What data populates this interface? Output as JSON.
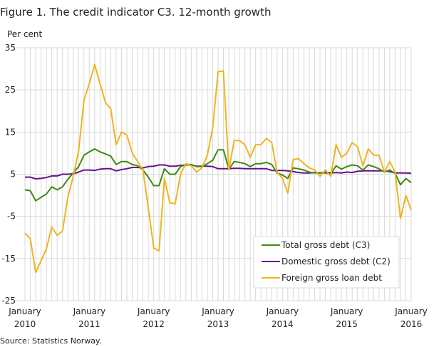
{
  "chart_data": {
    "type": "line",
    "title": "Figure 1. The credit indicator C3. 12-month growth",
    "ylabel": "Per cent",
    "source": "Source: Statistics Norway.",
    "ylim": [
      -25,
      35
    ],
    "yticks": [
      35,
      25,
      15,
      5,
      -5,
      -15,
      -25
    ],
    "x_start": "2010-01",
    "x_end": "2016-01",
    "xtick_labels": [
      {
        "month": "January",
        "year": "2010"
      },
      {
        "month": "January",
        "year": "2011"
      },
      {
        "month": "January",
        "year": "2012"
      },
      {
        "month": "January",
        "year": "2013"
      },
      {
        "month": "January",
        "year": "2014"
      },
      {
        "month": "January",
        "year": "2015"
      },
      {
        "month": "January",
        "year": "2016"
      }
    ],
    "grid": true,
    "legend_placement": "bottom-right",
    "series": [
      {
        "name": "Total gross debt (C3)",
        "color": "#3f8a0e",
        "values": [
          1.3,
          1.1,
          -1.3,
          -0.5,
          0.3,
          2,
          1.3,
          2,
          3.8,
          5.3,
          6.8,
          9.5,
          10.3,
          11,
          10.3,
          9.8,
          9.3,
          7.3,
          8,
          8,
          7.3,
          7,
          6,
          4.3,
          2.3,
          2.3,
          6.3,
          5,
          5,
          6.8,
          7.3,
          7.3,
          6.8,
          6.8,
          7.5,
          8.3,
          10.8,
          10.8,
          6.2,
          8,
          7.8,
          7.5,
          6.8,
          7.5,
          7.5,
          7.8,
          7.3,
          5.3,
          4.8,
          4,
          6.5,
          6.3,
          6,
          5.5,
          5.3,
          5.3,
          5.3,
          5.1,
          7,
          6.2,
          6.8,
          7.2,
          7,
          6,
          7.2,
          6.8,
          6.3,
          5.5,
          6,
          5.2,
          2.5,
          4,
          3
        ]
      },
      {
        "name": "Domestic gross debt (C2)",
        "color": "#6b0f8a",
        "values": [
          4.3,
          4.3,
          3.9,
          4,
          4.2,
          4.6,
          4.6,
          5,
          5,
          5.1,
          5.5,
          6,
          6,
          5.9,
          6.2,
          6.3,
          6.3,
          5.8,
          6.1,
          6.3,
          6.6,
          6.6,
          6.5,
          6.8,
          6.9,
          7.2,
          7.2,
          6.9,
          6.9,
          7.1,
          7.2,
          7.2,
          6.9,
          6.9,
          6.9,
          6.8,
          6.3,
          6.3,
          6.3,
          6.4,
          6.4,
          6.3,
          6.3,
          6.3,
          6.3,
          6.3,
          5.9,
          5.9,
          5.9,
          5.8,
          5.6,
          5.4,
          5.3,
          5.3,
          5.4,
          5.3,
          5.5,
          5.3,
          5.4,
          5.3,
          5.5,
          5.4,
          5.7,
          5.8,
          5.8,
          5.8,
          5.8,
          5.8,
          5.6,
          5.3,
          5.3,
          5.3,
          5.2
        ]
      },
      {
        "name": "Foreign gross loan debt",
        "color": "#f0b323",
        "values": [
          -9,
          -10.3,
          -18.3,
          -15.5,
          -12.7,
          -7.5,
          -9.5,
          -8.5,
          -0.5,
          4.5,
          10.5,
          22.5,
          26.5,
          31,
          26.5,
          22,
          20.5,
          12,
          15,
          14.3,
          10,
          8,
          6,
          -3,
          -12.5,
          -13.2,
          4,
          -1.8,
          -2,
          5,
          7.5,
          7,
          5.5,
          6.5,
          9.5,
          16,
          29.3,
          29.5,
          6,
          13,
          13,
          12,
          9,
          12,
          12,
          13.5,
          12.5,
          5.5,
          4,
          0.5,
          8.5,
          8.7,
          7.5,
          6.5,
          6,
          4.5,
          6,
          4.5,
          12,
          9,
          10,
          12.5,
          11.5,
          7,
          11,
          9.5,
          9.5,
          5.5,
          8,
          5.5,
          -5.5,
          0,
          -3.5
        ]
      }
    ]
  }
}
